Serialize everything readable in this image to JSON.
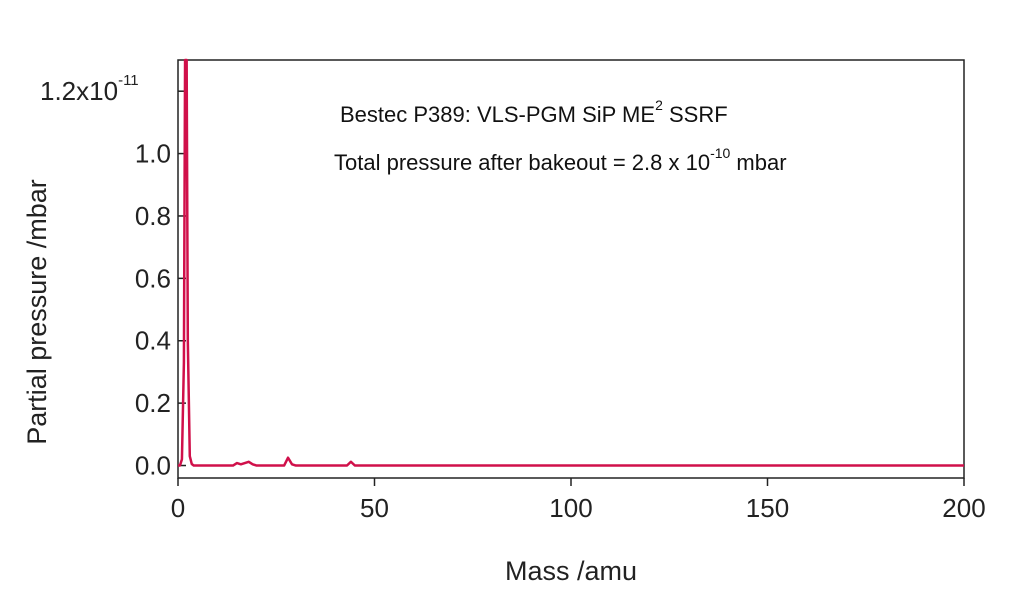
{
  "chart_data": {
    "type": "line",
    "xlabel": "Mass /amu",
    "ylabel": "Partial pressure /mbar",
    "xlim": [
      0,
      200
    ],
    "ylim": [
      -0.04,
      1.3
    ],
    "x_ticks": [
      {
        "value": 0,
        "label": "0"
      },
      {
        "value": 50,
        "label": "50"
      },
      {
        "value": 100,
        "label": "100"
      },
      {
        "value": 150,
        "label": "150"
      },
      {
        "value": 200,
        "label": "200"
      }
    ],
    "y_ticks": [
      {
        "value": 0.0,
        "label": "0.0"
      },
      {
        "value": 0.2,
        "label": "0.2"
      },
      {
        "value": 0.4,
        "label": "0.4"
      },
      {
        "value": 0.6,
        "label": "0.6"
      },
      {
        "value": 0.8,
        "label": "0.8"
      },
      {
        "value": 1.0,
        "label": "1.0"
      },
      {
        "value": 1.2,
        "label": "1.2x10",
        "superscript": "-11"
      }
    ],
    "grid": false,
    "line_color": "#d0104a",
    "annotations": [
      {
        "text": "Bestec P389: VLS-PGM SiP ME",
        "superscript": "2",
        "suffix": " SSRF"
      },
      {
        "text": "Total pressure after bakeout = 2.8 x 10",
        "superscript": "-10",
        "suffix": " mbar"
      }
    ],
    "series": [
      {
        "x": [
          0,
          0.5,
          1.0,
          1.5,
          1.8,
          2.0,
          2.2,
          2.5,
          3.0,
          3.5,
          4,
          10,
          14,
          15,
          16,
          17,
          18,
          19,
          20,
          27,
          28,
          29,
          30,
          43,
          44,
          45,
          50,
          100,
          150,
          200
        ],
        "y": [
          0.0,
          0.0,
          0.02,
          0.33,
          1.3,
          1.3,
          1.3,
          0.4,
          0.03,
          0.005,
          0.0,
          0.0,
          0.0,
          0.008,
          0.004,
          0.008,
          0.012,
          0.004,
          0.0,
          0.0,
          0.025,
          0.004,
          0.0,
          0.0,
          0.012,
          0.0,
          0.0,
          0.0,
          0.0,
          0.0
        ]
      }
    ]
  }
}
